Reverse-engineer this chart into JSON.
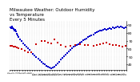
{
  "title": "Milwaukee Weather: Outdoor Humidity\nvs Temperature\nEvery 5 Minutes",
  "bg_color": "#ffffff",
  "plot_bg": "#ffffff",
  "grid_color": "#b0b0b0",
  "blue_color": "#0000cc",
  "red_color": "#cc0000",
  "y_right_values": [
    90,
    80,
    70,
    60,
    50,
    40
  ],
  "ylim": [
    33,
    95
  ],
  "xlim": [
    0,
    144
  ],
  "blue_x": [
    1,
    2,
    3,
    4,
    5,
    6,
    7,
    8,
    9,
    10,
    11,
    13,
    15,
    17,
    19,
    21,
    23,
    25,
    27,
    29,
    31,
    33,
    35,
    37,
    39,
    41,
    43,
    45,
    47,
    49,
    51,
    53,
    55,
    57,
    59,
    61,
    63,
    65,
    67,
    69,
    71,
    73,
    75,
    77,
    79,
    81,
    83,
    85,
    87,
    89,
    91,
    93,
    95,
    97,
    99,
    101,
    103,
    105,
    107,
    109,
    111,
    113,
    115,
    117,
    119,
    121,
    123,
    125,
    127,
    129,
    131,
    133,
    135,
    137,
    139,
    141,
    143
  ],
  "blue_y": [
    87,
    86,
    88,
    86,
    85,
    83,
    84,
    82,
    79,
    77,
    75,
    72,
    70,
    67,
    65,
    62,
    60,
    58,
    55,
    53,
    51,
    49,
    47,
    45,
    43,
    41,
    40,
    38,
    37,
    36,
    35,
    36,
    37,
    39,
    41,
    43,
    46,
    48,
    50,
    52,
    54,
    56,
    58,
    60,
    62,
    63,
    65,
    66,
    68,
    69,
    71,
    72,
    73,
    75,
    76,
    77,
    78,
    80,
    81,
    82,
    83,
    83,
    84,
    85,
    84,
    85,
    86,
    85,
    87,
    86,
    87,
    88,
    87,
    88,
    87,
    86,
    87
  ],
  "red_x": [
    1,
    3,
    5,
    7,
    9,
    11,
    15,
    19,
    23,
    27,
    33,
    39,
    43,
    47,
    51,
    55,
    59,
    63,
    69,
    75,
    81,
    87,
    93,
    97,
    103,
    107,
    111,
    115,
    119,
    123,
    127,
    131,
    135,
    139,
    143
  ],
  "red_y": [
    63,
    63,
    62,
    62,
    61,
    60,
    59,
    57,
    55,
    55,
    66,
    70,
    70,
    68,
    67,
    72,
    68,
    65,
    62,
    63,
    64,
    66,
    65,
    64,
    63,
    65,
    66,
    67,
    68,
    66,
    65,
    64,
    63,
    62,
    63
  ],
  "markersize": 1.5,
  "title_fontsize": 4.0,
  "tick_fontsize": 3.2,
  "x_tick_fontsize": 2.0
}
